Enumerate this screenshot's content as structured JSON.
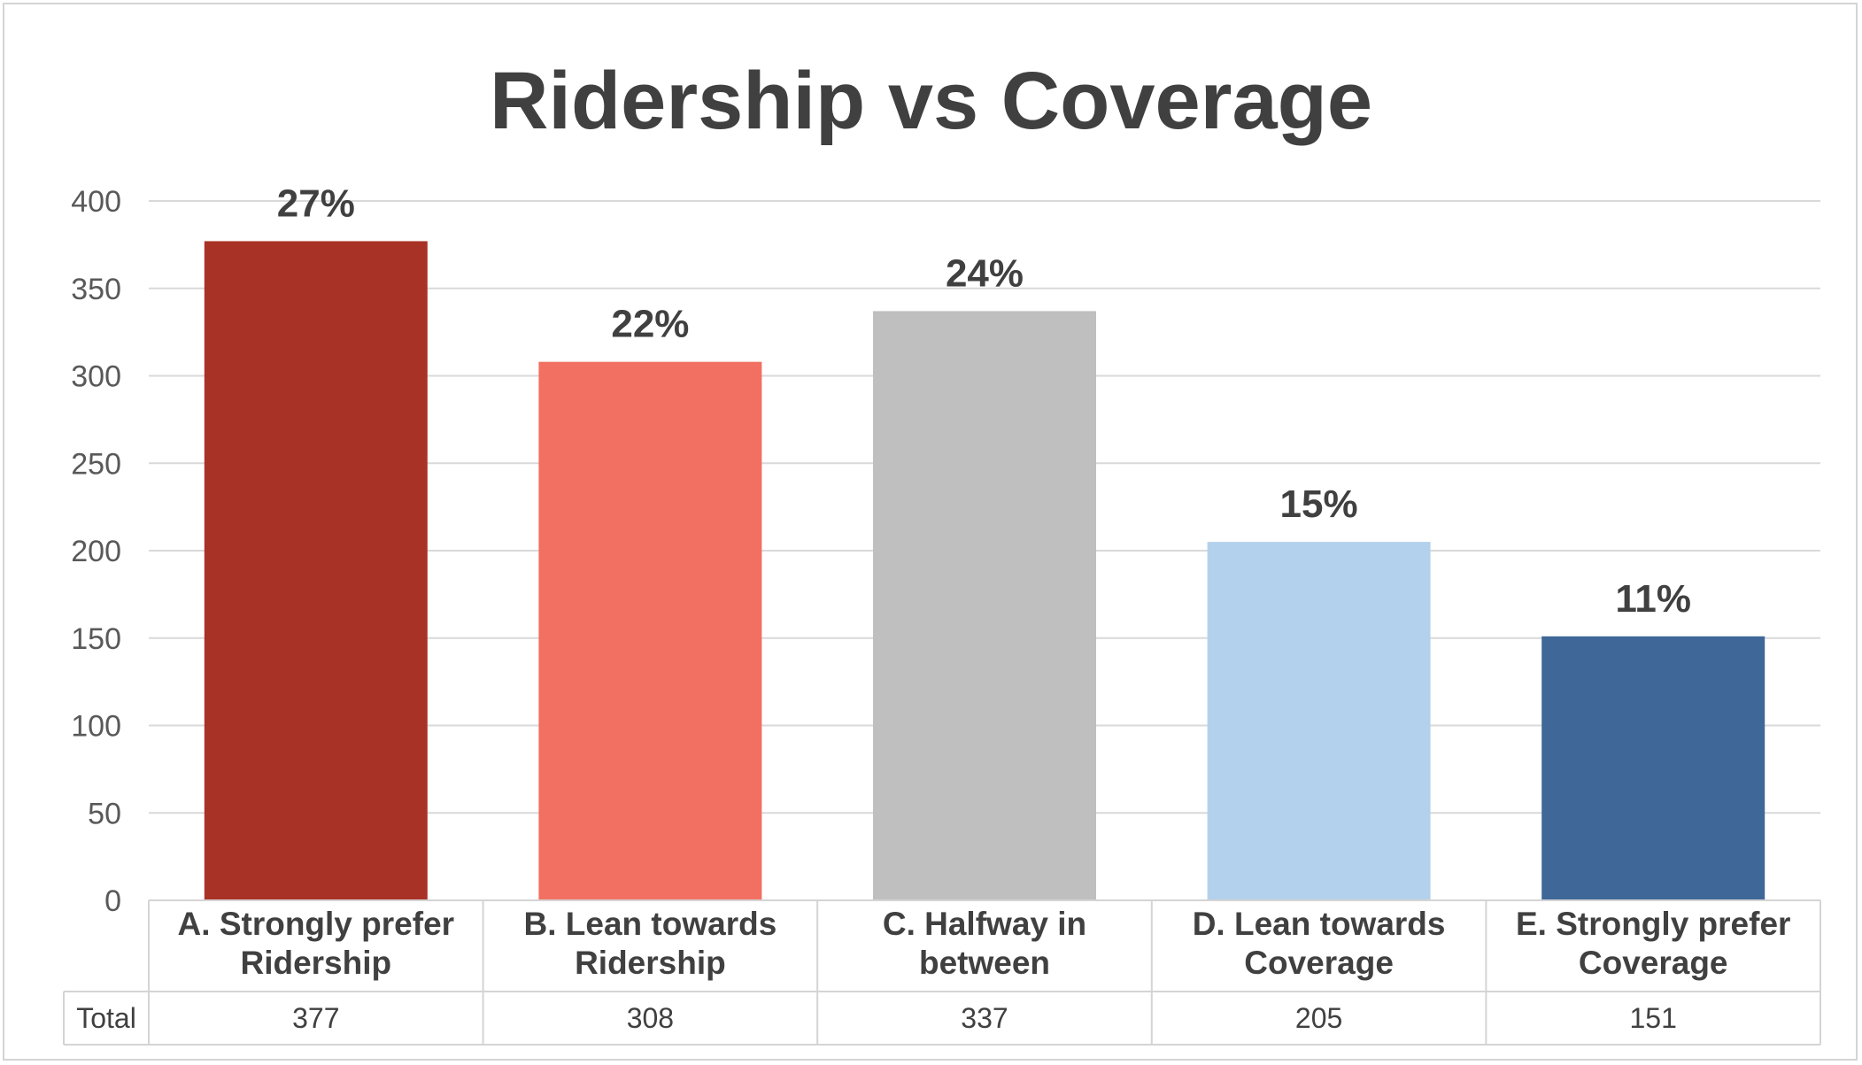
{
  "chart_data": {
    "type": "bar",
    "title": "Ridership vs Coverage",
    "categories": [
      [
        "A. Strongly prefer",
        "Ridership"
      ],
      [
        "B. Lean towards",
        "Ridership"
      ],
      [
        "C. Halfway in",
        "between"
      ],
      [
        "D. Lean towards",
        "Coverage"
      ],
      [
        "E. Strongly prefer",
        "Coverage"
      ]
    ],
    "values": [
      377,
      308,
      337,
      205,
      151
    ],
    "data_labels": [
      "27%",
      "22%",
      "24%",
      "15%",
      "11%"
    ],
    "colors": [
      "#a93226",
      "#f27062",
      "#bfbfbf",
      "#b3d1ec",
      "#3f6898"
    ],
    "ylim": [
      0,
      400
    ],
    "yticks": [
      0,
      50,
      100,
      150,
      200,
      250,
      300,
      350,
      400
    ],
    "grid": true,
    "table": {
      "row_label": "Total",
      "values": [
        "377",
        "308",
        "337",
        "205",
        "151"
      ]
    }
  }
}
